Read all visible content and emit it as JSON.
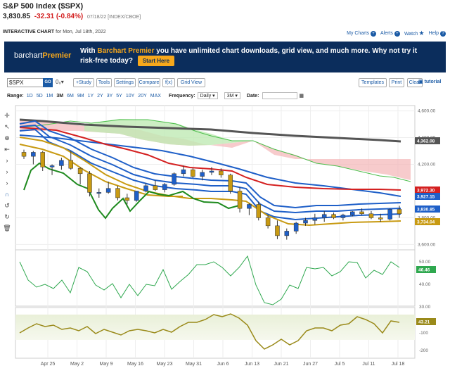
{
  "header": {
    "title": "S&P 500 Index ($SPX)",
    "last": "3,830.85",
    "change": "-32.31 (-0.84%)",
    "meta": "07/18/22 [INDEX/CBOE]",
    "interactive_label": "INTERACTIVE CHART",
    "interactive_date": "for Mon, Jul 18th, 2022",
    "links": [
      "My Charts",
      "Alerts",
      "Watch",
      "Help"
    ]
  },
  "banner": {
    "logo_a": "barchart",
    "logo_b": "Premier",
    "msg_a": "With",
    "msg_hl": "Barchart Premier",
    "msg_b": "you have unlimited chart downloads, grid view, and much more. Why not try it risk-free today?",
    "cta": "Start Here"
  },
  "toolbar": {
    "symbol": "$SPX",
    "go": "GO",
    "o0": "0₀▾",
    "study": "+Study",
    "tools": "Tools",
    "settings": "Settings",
    "compare": "Compare",
    "fx": "f(x)",
    "grid_view": "Grid View",
    "templates": "Templates",
    "print": "Print",
    "clear": "Clear",
    "tutorial": "tutorial"
  },
  "range_bar": {
    "label": "Range:",
    "ranges": [
      "1D",
      "5D",
      "1M",
      "3M",
      "6M",
      "9M",
      "1Y",
      "2Y",
      "3Y",
      "5Y",
      "10Y",
      "20Y",
      "MAX"
    ],
    "selected": "3M",
    "frequency_label": "Frequency:",
    "frequency": "Daily",
    "period": "3M",
    "date_label": "Date:"
  },
  "side_tools": [
    "crosshair-icon",
    "arrow-icon",
    "target-icon",
    "bar-arrow-icon",
    "arrow-right-icon",
    "arrow-right-icon",
    "arrow-right-icon",
    "magnet-icon",
    "undo-icon",
    "redo-icon",
    "trash-icon"
  ],
  "chart_data": {
    "type": "candlestick",
    "x_labels": [
      "Apr 25",
      "May 2",
      "May 9",
      "May 16",
      "May 23",
      "May 31",
      "Jun 6",
      "Jun 13",
      "Jun 21",
      "Jun 27",
      "Jul 5",
      "Jul 11",
      "Jul 18"
    ],
    "price_axis": {
      "ticks": [
        4600,
        4400,
        4200,
        3800,
        3600
      ],
      "ylim": [
        3560,
        4640
      ]
    },
    "price_tags": [
      {
        "value": "4,362.08",
        "color": "#555555"
      },
      {
        "value": "3,972.30",
        "color": "#d42020"
      },
      {
        "value": "3,927.15",
        "color": "#1e5fc8"
      },
      {
        "value": "3,830.85",
        "color": "#1e5fc8"
      },
      {
        "value": "3,734.04",
        "color": "#c89a12"
      }
    ],
    "candles": [
      [
        4290,
        4310,
        4240,
        4260
      ],
      [
        4260,
        4300,
        4200,
        4290
      ],
      [
        4290,
        4300,
        4150,
        4180
      ],
      [
        4180,
        4200,
        4120,
        4190
      ],
      [
        4190,
        4250,
        4160,
        4230
      ],
      [
        4230,
        4300,
        4160,
        4170
      ],
      [
        4170,
        4180,
        4050,
        4130
      ],
      [
        4130,
        4150,
        3960,
        3990
      ],
      [
        3990,
        4020,
        3950,
        3990
      ],
      [
        3990,
        4070,
        3980,
        4020
      ],
      [
        4020,
        4040,
        3930,
        3950
      ],
      [
        3950,
        3980,
        3900,
        3930
      ],
      [
        3930,
        4000,
        3920,
        4000
      ],
      [
        4000,
        4060,
        3990,
        4040
      ],
      [
        4040,
        4080,
        4000,
        4010
      ],
      [
        4010,
        4060,
        3990,
        4050
      ],
      [
        4050,
        4140,
        4040,
        4130
      ],
      [
        4130,
        4190,
        4110,
        4160
      ],
      [
        4160,
        4170,
        4100,
        4110
      ],
      [
        4110,
        4160,
        4080,
        4140
      ],
      [
        4140,
        4180,
        4120,
        4150
      ],
      [
        4150,
        4170,
        4100,
        4120
      ],
      [
        4120,
        4130,
        3980,
        4000
      ],
      [
        4000,
        4030,
        3840,
        3870
      ],
      [
        3870,
        3910,
        3820,
        3900
      ],
      [
        3900,
        3920,
        3780,
        3800
      ],
      [
        3800,
        3820,
        3720,
        3740
      ],
      [
        3740,
        3780,
        3640,
        3666
      ],
      [
        3666,
        3720,
        3636,
        3700
      ],
      [
        3700,
        3770,
        3680,
        3760
      ],
      [
        3760,
        3800,
        3740,
        3780
      ],
      [
        3780,
        3830,
        3750,
        3800
      ],
      [
        3800,
        3850,
        3770,
        3825
      ],
      [
        3825,
        3840,
        3790,
        3800
      ],
      [
        3800,
        3830,
        3780,
        3821
      ],
      [
        3821,
        3850,
        3810,
        3845
      ],
      [
        3845,
        3870,
        3820,
        3830
      ],
      [
        3830,
        3850,
        3790,
        3800
      ],
      [
        3800,
        3830,
        3770,
        3790
      ],
      [
        3790,
        3870,
        3780,
        3863
      ],
      [
        3863,
        3890,
        3800,
        3830
      ]
    ],
    "indicator_1": {
      "ticks": [
        50.0,
        40.0,
        30.0
      ],
      "last": "46.46",
      "color": "#2fa84f"
    },
    "indicator_2": {
      "ticks": [
        -100,
        -200
      ],
      "last": "43.21",
      "color": "#9a8a1a"
    }
  }
}
